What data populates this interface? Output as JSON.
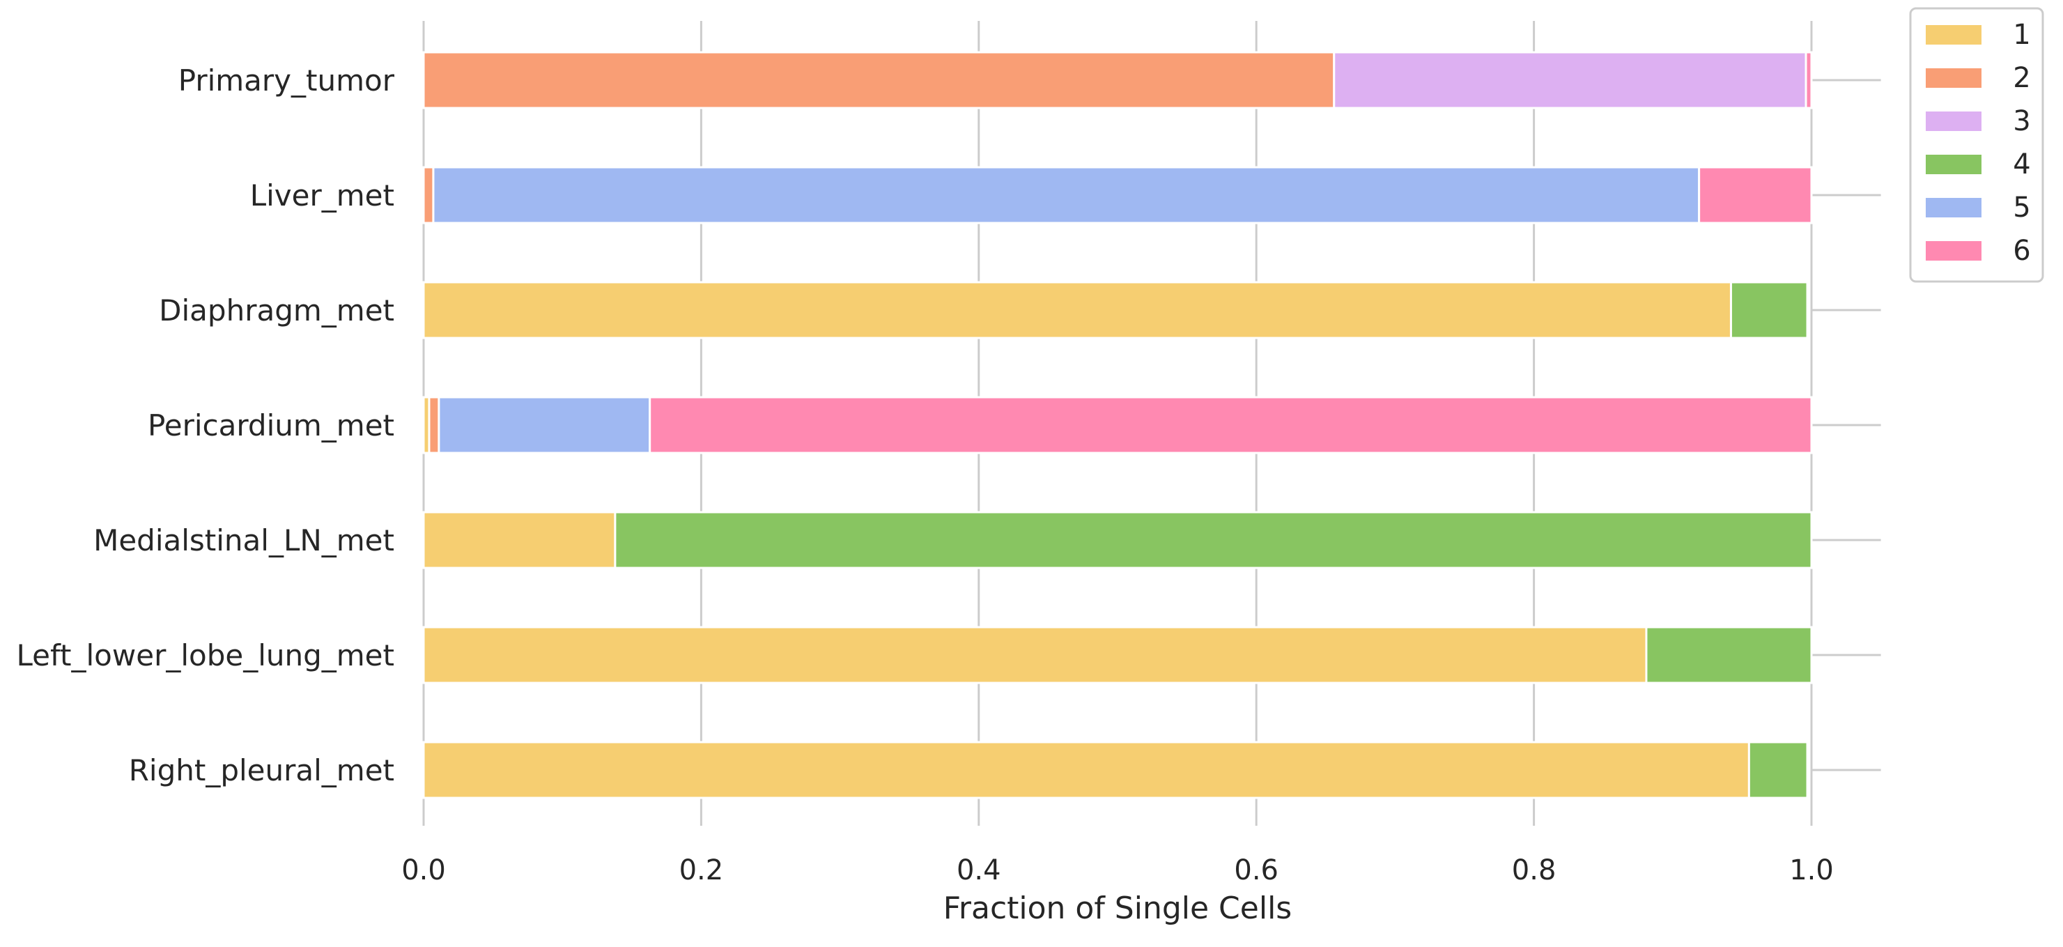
{
  "chart_data": {
    "type": "bar",
    "orientation": "horizontal",
    "stacked": true,
    "title": "",
    "xlabel": "Fraction of Single Cells",
    "ylabel": "",
    "xlim": [
      0.0,
      1.05
    ],
    "xticks": [
      "0.0",
      "0.2",
      "0.4",
      "0.6",
      "0.8",
      "1.0"
    ],
    "xtick_values": [
      0.0,
      0.2,
      0.4,
      0.6,
      0.8,
      1.0
    ],
    "grid": "vertical",
    "legend_position": "top-right outside",
    "categories": [
      "Primary_tumor",
      "Liver_met",
      "Diaphragm_met",
      "Pericardium_met",
      "Medialstinal_LN_met",
      "Left_lower_lobe_lung_met",
      "Right_pleural_met"
    ],
    "series": [
      {
        "name": "1",
        "color": "#F6CE71",
        "values": [
          0.0,
          0.0,
          0.942,
          0.004,
          0.138,
          0.881,
          0.955
        ]
      },
      {
        "name": "2",
        "color": "#F99E75",
        "values": [
          0.656,
          0.007,
          0.0,
          0.007,
          0.0,
          0.0,
          0.0
        ]
      },
      {
        "name": "3",
        "color": "#DDB0F2",
        "values": [
          0.34,
          0.0,
          0.0,
          0.0,
          0.0,
          0.0,
          0.0
        ]
      },
      {
        "name": "4",
        "color": "#88C561",
        "values": [
          0.0,
          0.0,
          0.055,
          0.0,
          0.862,
          0.119,
          0.042
        ]
      },
      {
        "name": "5",
        "color": "#9FB8F2",
        "values": [
          0.0,
          0.912,
          0.0,
          0.152,
          0.0,
          0.0,
          0.0
        ]
      },
      {
        "name": "6",
        "color": "#FF89B1",
        "values": [
          0.004,
          0.081,
          0.0,
          0.837,
          0.0,
          0.0,
          0.0
        ]
      }
    ]
  }
}
